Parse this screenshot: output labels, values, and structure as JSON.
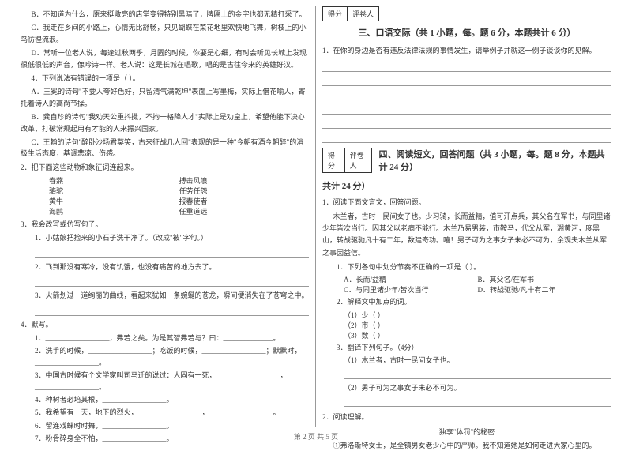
{
  "footer": "第 2 页 共 5 页",
  "left": {
    "optB": "B．不知道为什么，原来挺敞亮的店堂变得特别黑暗了，牌匾上的金字也都无精打采了。",
    "optC": "C．我走在乡间的小路上，心情无比舒畅，只见蝴蝶在菜花地里欢快地飞舞，树枝上的小鸟彷徨流浪。",
    "optD": "D．常听一位老人说，每逢过秋两季，月圆的时候，你要是心细，有时会听见长城上发现很低很低的声音，像吟诗一样。老人说：这是长城在唱歌，唱的是古往今来的英雄好汉。",
    "q4": "4．下列说法有错误的一项是（    ）。",
    "q4a": "A．王冕的诗句\"不要人夸好色好，只留清气满乾坤\"表面上写墨梅，实际上借花喻人，寄托着诗人的高尚节操。",
    "q4b": "B．龚自珍的诗句\"我劝天公重抖擞，不拘一格降人才\"实际上是劝皇上，希望他能下决心改革，打破常规起用有才能的人来振兴国家。",
    "q4c": "C．王翰的诗句\"醉卧沙场君莫笑，古来征战几人回\"表现的是一种\"今朝有酒今朝醉\"的消极生活态度，基调悲凉、伤感。",
    "q2head": "2．把下面这些动物和象征词连起来。",
    "pair1a": "春燕",
    "pair1b": "搏击风浪",
    "pair2a": "骆驼",
    "pair2b": "任劳任怨",
    "pair3a": "黄牛",
    "pair3b": "报春使者",
    "pair4a": "海鸥",
    "pair4b": "任重道远",
    "q3head": "3．我会改写或仿写句子。",
    "q3_1": "1．小姑娘把捡来的小石子洗干净了。（改成\"被\"字句。）",
    "q3_2": "2．飞到那没有寒冷，没有饥饿，也没有痛苦的地方去了。",
    "q3_3": "3．火箭划过一道绚丽的曲线，看起来犹如一条蜿蜒的苍龙，瞬间便消失在了苍穹之中。",
    "q4write": "4．默写。",
    "q4w1a": "1．__________________，弗若之矣。为是其智弗若与？曰：______________。",
    "q4w2": "2．洗手的时候，__________________；吃饭的时候，__________________；默默时，__________________。",
    "q4w3": "3．中国古时候有个文学家叫司马迁的说过：人固有一死，__________________，__________________。",
    "q4w4": "4．种树者必培其根，__________________。",
    "q4w5": "5．我希望有一天，地下的烈火，__________________，__________________。",
    "q4w6": "6．留连戏蝶时时舞，__________________。",
    "q4w7": "7．粉骨碎身全不怕，__________________。"
  },
  "right": {
    "score_label1": "得分",
    "score_label2": "评卷人",
    "sec3_title": "三、口语交际（共 1 小题，每。题 6 分，本题共计 6 分）",
    "sec3_q1": "1．在你的身边是否有违反法律法规的事情发生，请举例子并就这一例子谈谈你的见解。",
    "sec4_title": "四、阅读短文，回答问题（共 3 小题，每。题 8 分，本题共计 24 分）",
    "sec4_sub": "共计 24 分）",
    "r1": "1．阅读下面文言文，回答问题。",
    "passage": "    木兰者，古时一民间女子也。少习骑，长而益精，值可汗点兵，其父名在军书，与同里诸少年皆次当行。因其父以老病不能行。木兰乃易男装，市鞍马，代父从军，溯黄河，度黑山，转战驱驰凡十有二年，数建奇功。嘻！男子可为之事女子未必不可为，余观夫木兰从军之事因益信。",
    "r1q1": "1．下列各句中划分节奏不正确的一项是（    ）。",
    "r1q1a": "A．长而/益精",
    "r1q1b": "B．其父名/在军书",
    "r1q1c": "C．与同里诸少年/皆次当行",
    "r1q1d": "D．转战驱驰/凡十有二年",
    "r1q2": "2．解释文中加点的词。",
    "r1q2_1": "（1）少（          ）",
    "r1q2_2": "（2）市（          ）",
    "r1q2_3": "（3）数（          ）",
    "r1q3": "3．翻译下列句子。（4分）",
    "r1q3_1": "（1）木兰者，古时一民间女子也。",
    "r1q3_2": "（2）男子可为之事女子未必不可为。",
    "r2": "2．阅读理解。",
    "story_title": "独享\"体罚\"的秘密",
    "story_line": "①弗洛斯特女士，是全镇男女老少心中的严师。我不知道她是如何走进大家心里的。"
  }
}
